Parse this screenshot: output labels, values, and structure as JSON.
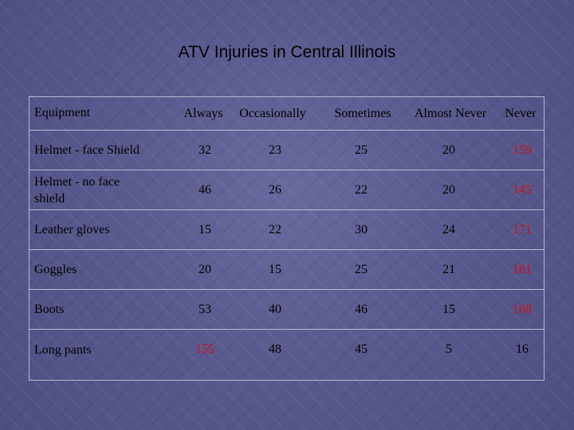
{
  "title": "ATV Injuries in Central Illinois",
  "table": {
    "headers": [
      "Equipment",
      "Always",
      "Occasionally",
      "Sometimes",
      "Almost Never",
      "Never"
    ],
    "rows": [
      {
        "equipment": "Helmet - face Shield",
        "always": "32",
        "occasionally": "23",
        "sometimes": "25",
        "almost_never": "20",
        "never": "159"
      },
      {
        "equipment": "Helmet - no face shield",
        "always": "46",
        "occasionally": "26",
        "sometimes": "22",
        "almost_never": "20",
        "never": "145"
      },
      {
        "equipment": "Leather gloves",
        "always": "15",
        "occasionally": "22",
        "sometimes": "30",
        "almost_never": "24",
        "never": "171"
      },
      {
        "equipment": "Goggles",
        "always": "20",
        "occasionally": "15",
        "sometimes": "25",
        "almost_never": "21",
        "never": "181"
      },
      {
        "equipment": "Boots",
        "always": "53",
        "occasionally": "40",
        "sometimes": "46",
        "almost_never": "15",
        "never": "108"
      },
      {
        "equipment": "Long pants",
        "always": "155",
        "occasionally": "48",
        "sometimes": "45",
        "almost_never": "5",
        "never": "16"
      }
    ]
  },
  "colors": {
    "background": "#5a5a8e",
    "text": "#000000",
    "highlight_red": "#cc1111",
    "grid_line": "#b9b9d4"
  }
}
